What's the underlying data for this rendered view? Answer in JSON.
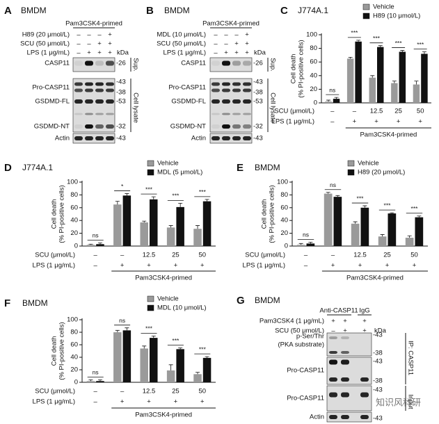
{
  "chart_data": [
    {
      "type": "bar",
      "panel": "C",
      "title": "J774A.1",
      "ylabel": [
        "Cell death",
        "(% PI-positive cells)"
      ],
      "x_label": "SCU (μmol/L)",
      "categories": [
        "–",
        "–",
        "12.5",
        "25",
        "50"
      ],
      "lps": {
        "label": "LPS (1 μg/mL)",
        "values": [
          "–",
          "+",
          "+",
          "+",
          "+"
        ]
      },
      "group_label": "Pam3CSK4-primed",
      "series": [
        {
          "name": "Vehicle",
          "color": "#9a9a9a",
          "values": [
            2,
            65,
            37,
            29,
            27
          ],
          "errors": [
            2,
            2,
            3,
            3,
            5
          ]
        },
        {
          "name": "H89 (10 μmol/L)",
          "color": "#111111",
          "values": [
            6,
            90,
            82,
            75,
            72
          ],
          "errors": [
            2,
            2,
            2,
            2,
            3
          ]
        }
      ],
      "significance": [
        "ns",
        "***",
        "***",
        "***",
        "***"
      ],
      "ylim": [
        0,
        100
      ],
      "yticks": [
        0,
        20,
        40,
        60,
        80,
        100
      ],
      "grid": false
    },
    {
      "type": "bar",
      "panel": "D",
      "title": "J774A.1",
      "ylabel": [
        "Cell death",
        "(% PI-positive cells)"
      ],
      "x_label": "SCU (μmol/L)",
      "categories": [
        "–",
        "–",
        "12.5",
        "25",
        "50"
      ],
      "lps": {
        "label": "LPS (1 μg/mL)",
        "values": [
          "–",
          "+",
          "+",
          "+",
          "+"
        ]
      },
      "group_label": "Pam3CSK4-primed",
      "series": [
        {
          "name": "Vehicle",
          "color": "#9a9a9a",
          "values": [
            2,
            65,
            37,
            29,
            27
          ],
          "errors": [
            1,
            5,
            2,
            3,
            5
          ]
        },
        {
          "name": "MDL (5 μmol/L)",
          "color": "#111111",
          "values": [
            3,
            79,
            73,
            61,
            70
          ],
          "errors": [
            2,
            3,
            4,
            6,
            3
          ]
        }
      ],
      "significance": [
        "ns",
        "*",
        "***",
        "***",
        "***"
      ],
      "ylim": [
        0,
        100
      ],
      "yticks": [
        0,
        20,
        40,
        60,
        80,
        100
      ],
      "grid": false
    },
    {
      "type": "bar",
      "panel": "E",
      "title": "BMDM",
      "ylabel": [
        "Cell death",
        "(% PI-positive cells)"
      ],
      "x_label": "SCU (μmol/L)",
      "categories": [
        "–",
        "–",
        "12.5",
        "25",
        "50"
      ],
      "lps": {
        "label": "LPS (1 μg/mL)",
        "values": [
          "–",
          "+",
          "+",
          "+",
          "+"
        ]
      },
      "group_label": "Pam3CSK4-primed",
      "series": [
        {
          "name": "Vehicle",
          "color": "#9a9a9a",
          "values": [
            2,
            82,
            35,
            15,
            13
          ],
          "errors": [
            2,
            2,
            3,
            3,
            3
          ]
        },
        {
          "name": "H89 (20 μmol/L)",
          "color": "#111111",
          "values": [
            4,
            77,
            60,
            51,
            45
          ],
          "errors": [
            2,
            2,
            3,
            1,
            2
          ]
        }
      ],
      "significance": [
        "ns",
        "ns",
        "***",
        "***",
        "***"
      ],
      "ylim": [
        0,
        100
      ],
      "yticks": [
        0,
        20,
        40,
        60,
        80,
        100
      ],
      "grid": false
    },
    {
      "type": "bar",
      "panel": "F",
      "title": "BMDM",
      "ylabel": [
        "Cell death",
        "(% PI-positive cells)"
      ],
      "x_label": "SCU (μmol/L)",
      "categories": [
        "–",
        "–",
        "12.5",
        "25",
        "50"
      ],
      "lps": {
        "label": "LPS (1 μg/mL)",
        "values": [
          "–",
          "+",
          "+",
          "+",
          "+"
        ]
      },
      "group_label": "Pam3CSK4-primed",
      "series": [
        {
          "name": "Vehicle",
          "color": "#9a9a9a",
          "values": [
            2,
            80,
            54,
            19,
            13
          ],
          "errors": [
            2,
            3,
            4,
            9,
            3
          ]
        },
        {
          "name": "MDL (10 μmol/L)",
          "color": "#111111",
          "values": [
            2,
            83,
            71,
            53,
            39
          ],
          "errors": [
            2,
            4,
            3,
            2,
            2
          ]
        }
      ],
      "significance": [
        "ns",
        "ns",
        "***",
        "***",
        "***"
      ],
      "ylim": [
        0,
        100
      ],
      "yticks": [
        0,
        20,
        40,
        60,
        80,
        100
      ],
      "grid": false
    }
  ],
  "blots": [
    {
      "panel": "A",
      "title": "BMDM",
      "header": "Pam3CSK4-primed",
      "conditions": [
        {
          "label": "H89 (20 μmol/L)",
          "values": [
            "–",
            "–",
            "–",
            "+"
          ]
        },
        {
          "label": "SCU (50 μmol/L)",
          "values": [
            "–",
            "–",
            "+",
            "+"
          ]
        },
        {
          "label": "LPS (1 μg/mL)",
          "values": [
            "–",
            "+",
            "+",
            "+"
          ]
        }
      ],
      "kda": "kDa",
      "bands": [
        {
          "label": "CASP11",
          "mw": [
            "-26"
          ]
        },
        {
          "label": "Pro-CASP11",
          "mw": [
            "-43",
            "-38"
          ]
        },
        {
          "label": "GSDMD-FL",
          "mw": [
            "-53"
          ]
        },
        {
          "label": "GSDMD-NT",
          "mw": [
            "-32"
          ]
        },
        {
          "label": "Actin",
          "mw": [
            "-43"
          ]
        }
      ],
      "fractions": [
        "Sup.",
        "Cell lysate"
      ]
    },
    {
      "panel": "B",
      "title": "BMDM",
      "header": "Pam3CSK4-primed",
      "conditions": [
        {
          "label": "MDL (10 μmol/L)",
          "values": [
            "–",
            "–",
            "–",
            "+"
          ]
        },
        {
          "label": "SCU (50 μmol/L)",
          "values": [
            "–",
            "–",
            "+",
            "+"
          ]
        },
        {
          "label": "LPS (1 μg/mL)",
          "values": [
            "–",
            "+",
            "+",
            "+"
          ]
        }
      ],
      "kda": "kDa",
      "bands": [
        {
          "label": "CASP11",
          "mw": [
            "-26"
          ]
        },
        {
          "label": "Pro-CASP11",
          "mw": [
            "-43",
            "-38"
          ]
        },
        {
          "label": "GSDMD-FL",
          "mw": [
            "-53"
          ]
        },
        {
          "label": "GSDMD-NT",
          "mw": [
            "-32"
          ]
        },
        {
          "label": "Actin",
          "mw": [
            "-43"
          ]
        }
      ],
      "fractions": [
        "Sup.",
        "Cell lysate"
      ]
    },
    {
      "panel": "G",
      "title": "BMDM",
      "header": [
        "Anti-CASP11",
        "IgG"
      ],
      "conditions": [
        {
          "label": "Pam3CSK4 (1 μg/mL)",
          "values": [
            "+",
            "+",
            "+"
          ]
        },
        {
          "label": "SCU (50 μmol/L)",
          "values": [
            "–",
            "+",
            "+"
          ]
        }
      ],
      "kda": "kDa",
      "bands": [
        {
          "label": [
            "p-Ser/Thr",
            "(PKA substrate)"
          ],
          "mw": [
            "-43",
            "-38"
          ]
        },
        {
          "label": "Pro-CASP11",
          "mw": [
            "-43",
            "-38"
          ]
        },
        {
          "label": "Pro-CASP11",
          "mw": [
            "-43"
          ]
        },
        {
          "label": "Actin",
          "mw": [
            "-43"
          ]
        }
      ],
      "fractions": [
        "IP: CASP11",
        "Input"
      ],
      "watermark": "知识风科研"
    }
  ]
}
